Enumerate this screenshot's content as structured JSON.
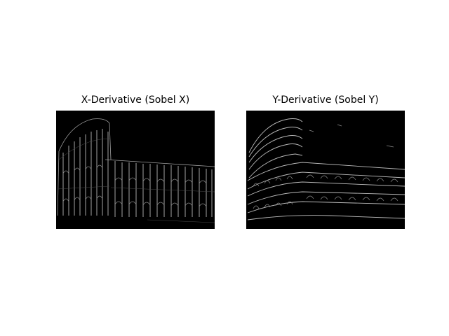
{
  "figure": {
    "background": "#ffffff",
    "panels": [
      {
        "title": "X-Derivative (Sobel X)",
        "image": "edge-map-vertical-edges",
        "image_background": "#000000",
        "edge_color": "#ffffff"
      },
      {
        "title": "Y-Derivative (Sobel Y)",
        "image": "edge-map-horizontal-edges",
        "image_background": "#000000",
        "edge_color": "#ffffff"
      }
    ]
  }
}
